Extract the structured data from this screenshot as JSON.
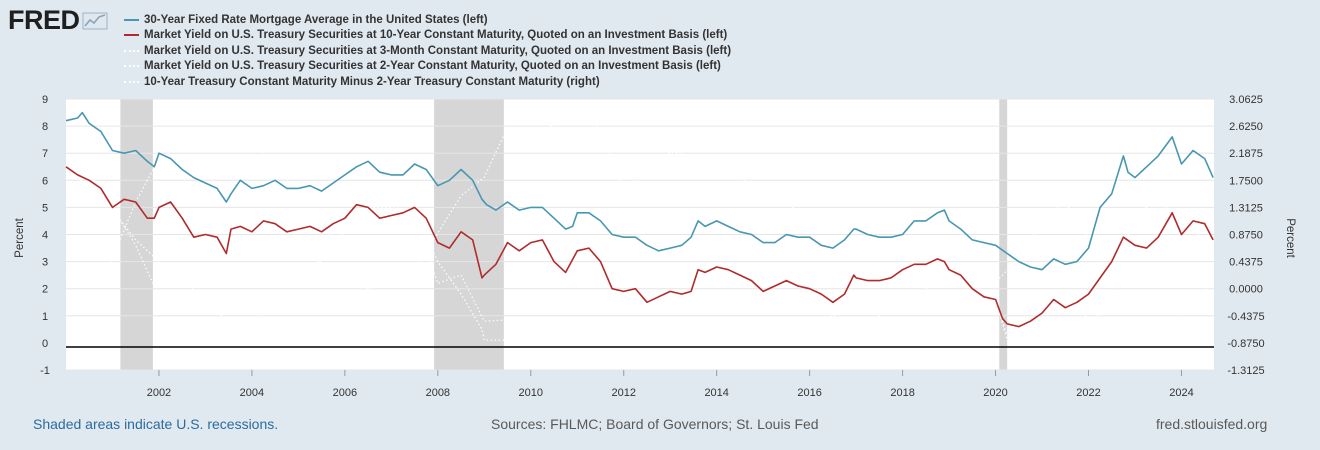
{
  "logo": {
    "text": "FRED"
  },
  "colors": {
    "mortgage": "#4797b1",
    "ten_year": "#b02b2c",
    "three_month": "#ffffff",
    "two_year": "#ffffff",
    "spread": "#ffffff",
    "recession": "#d6d6d6",
    "plot_bg": "#ffffff",
    "page_bg": "#e1e9f0"
  },
  "legend": [
    {
      "label": "30-Year Fixed Rate Mortgage Average in the United States (left)",
      "color": "#4797b1",
      "style": "solid"
    },
    {
      "label": "Market Yield on U.S. Treasury Securities at 10-Year Constant Maturity, Quoted on an Investment Basis (left)",
      "color": "#b02b2c",
      "style": "solid"
    },
    {
      "label": "Market Yield on U.S. Treasury Securities at 3-Month Constant Maturity, Quoted on an Investment Basis (left)",
      "color": "#ffffff",
      "style": "dotted"
    },
    {
      "label": "Market Yield on U.S. Treasury Securities at 2-Year Constant Maturity, Quoted on an Investment Basis (left)",
      "color": "#ffffff",
      "style": "dotted"
    },
    {
      "label": "10-Year Treasury Constant Maturity Minus 2-Year Treasury Constant Maturity (right)",
      "color": "#ffffff",
      "style": "dotted"
    }
  ],
  "footer": {
    "left": "Shaded areas indicate U.S. recessions.",
    "middle": "Sources: FHLMC; Board of Governors; St. Louis Fed",
    "right": "fred.stlouisfed.org"
  },
  "chart_data": {
    "type": "line",
    "title": "",
    "xlabel": "",
    "ylabel_left": "Percent",
    "ylabel_right": "Percent",
    "xlim": [
      2000.0,
      2024.7
    ],
    "ylim_left": [
      -1,
      9
    ],
    "ylim_right": [
      -1.3125,
      3.0625
    ],
    "x_ticks": [
      2002,
      2004,
      2006,
      2008,
      2010,
      2012,
      2014,
      2016,
      2018,
      2020,
      2022,
      2024
    ],
    "x_tick_labels": [
      "2002",
      "2004",
      "2006",
      "2008",
      "2010",
      "2012",
      "2014",
      "2016",
      "2018",
      "2020",
      "2022",
      "2024"
    ],
    "y_left_ticks": [
      -1,
      0,
      1,
      2,
      3,
      4,
      5,
      6,
      7,
      8,
      9
    ],
    "y_left_tick_labels": [
      "-1",
      "0",
      "1",
      "2",
      "3",
      "4",
      "5",
      "6",
      "7",
      "8",
      "9"
    ],
    "y_right_ticks": [
      -1.3125,
      -0.875,
      -0.4375,
      0,
      0.4375,
      0.875,
      1.3125,
      1.75,
      2.1875,
      2.625,
      3.0625
    ],
    "y_right_tick_labels": [
      "-1.3125",
      "-0.8750",
      "-0.4375",
      "0.0000",
      "0.4375",
      "0.8750",
      "1.3125",
      "1.7500",
      "2.1875",
      "2.6250",
      "3.0625"
    ],
    "zero_line": 0,
    "recessions": [
      [
        2001.17,
        2001.87
      ],
      [
        2007.92,
        2009.42
      ],
      [
        2020.08,
        2020.25
      ]
    ],
    "series": [
      {
        "name": "30-Year Fixed Rate Mortgage Average in the United States",
        "axis": "left",
        "x": [
          2000.0,
          2000.25,
          2000.35,
          2000.5,
          2000.75,
          2001.0,
          2001.25,
          2001.5,
          2001.75,
          2001.9,
          2002.0,
          2002.25,
          2002.5,
          2002.75,
          2003.0,
          2003.25,
          2003.45,
          2003.55,
          2003.75,
          2004.0,
          2004.25,
          2004.5,
          2004.75,
          2005.0,
          2005.25,
          2005.5,
          2005.75,
          2006.0,
          2006.25,
          2006.5,
          2006.75,
          2007.0,
          2007.25,
          2007.5,
          2007.75,
          2008.0,
          2008.25,
          2008.5,
          2008.75,
          2008.95,
          2009.05,
          2009.25,
          2009.5,
          2009.75,
          2010.0,
          2010.25,
          2010.5,
          2010.75,
          2010.9,
          2011.0,
          2011.25,
          2011.5,
          2011.75,
          2012.0,
          2012.25,
          2012.5,
          2012.75,
          2013.0,
          2013.25,
          2013.45,
          2013.6,
          2013.75,
          2014.0,
          2014.25,
          2014.5,
          2014.75,
          2015.0,
          2015.25,
          2015.5,
          2015.75,
          2016.0,
          2016.25,
          2016.5,
          2016.75,
          2016.95,
          2017.0,
          2017.25,
          2017.5,
          2017.75,
          2018.0,
          2018.25,
          2018.5,
          2018.75,
          2018.9,
          2019.0,
          2019.25,
          2019.5,
          2019.75,
          2020.0,
          2020.25,
          2020.5,
          2020.75,
          2021.0,
          2021.25,
          2021.5,
          2021.75,
          2022.0,
          2022.25,
          2022.5,
          2022.75,
          2022.85,
          2023.0,
          2023.25,
          2023.5,
          2023.8,
          2024.0,
          2024.25,
          2024.5,
          2024.68
        ],
        "values": [
          8.2,
          8.3,
          8.5,
          8.1,
          7.8,
          7.1,
          7.0,
          7.1,
          6.7,
          6.5,
          7.0,
          6.8,
          6.4,
          6.1,
          5.9,
          5.7,
          5.2,
          5.5,
          6.0,
          5.7,
          5.8,
          6.0,
          5.7,
          5.7,
          5.8,
          5.6,
          5.9,
          6.2,
          6.5,
          6.7,
          6.3,
          6.2,
          6.2,
          6.6,
          6.4,
          5.8,
          6.0,
          6.4,
          6.0,
          5.3,
          5.1,
          4.9,
          5.2,
          4.9,
          5.0,
          5.0,
          4.6,
          4.2,
          4.3,
          4.8,
          4.8,
          4.5,
          4.0,
          3.9,
          3.9,
          3.6,
          3.4,
          3.5,
          3.6,
          3.9,
          4.5,
          4.3,
          4.5,
          4.3,
          4.1,
          4.0,
          3.7,
          3.7,
          4.0,
          3.9,
          3.9,
          3.6,
          3.5,
          3.8,
          4.2,
          4.2,
          4.0,
          3.9,
          3.9,
          4.0,
          4.5,
          4.5,
          4.8,
          4.9,
          4.5,
          4.2,
          3.8,
          3.7,
          3.6,
          3.3,
          3.0,
          2.8,
          2.7,
          3.1,
          2.9,
          3.0,
          3.5,
          5.0,
          5.5,
          6.9,
          6.3,
          6.1,
          6.5,
          6.9,
          7.6,
          6.6,
          7.1,
          6.8,
          6.1
        ]
      },
      {
        "name": "Market Yield on U.S. Treasury Securities at 10-Year Constant Maturity",
        "axis": "left",
        "x": [
          2000.0,
          2000.25,
          2000.5,
          2000.75,
          2001.0,
          2001.25,
          2001.5,
          2001.75,
          2001.9,
          2002.0,
          2002.25,
          2002.5,
          2002.75,
          2003.0,
          2003.25,
          2003.45,
          2003.55,
          2003.75,
          2004.0,
          2004.25,
          2004.5,
          2004.75,
          2005.0,
          2005.25,
          2005.5,
          2005.75,
          2006.0,
          2006.25,
          2006.5,
          2006.75,
          2007.0,
          2007.25,
          2007.5,
          2007.75,
          2008.0,
          2008.25,
          2008.5,
          2008.75,
          2008.95,
          2009.0,
          2009.25,
          2009.5,
          2009.75,
          2010.0,
          2010.25,
          2010.5,
          2010.75,
          2011.0,
          2011.25,
          2011.5,
          2011.75,
          2012.0,
          2012.25,
          2012.5,
          2012.75,
          2013.0,
          2013.25,
          2013.45,
          2013.6,
          2013.75,
          2014.0,
          2014.25,
          2014.5,
          2014.75,
          2015.0,
          2015.25,
          2015.5,
          2015.75,
          2016.0,
          2016.25,
          2016.5,
          2016.75,
          2016.95,
          2017.0,
          2017.25,
          2017.5,
          2017.75,
          2018.0,
          2018.25,
          2018.5,
          2018.75,
          2018.9,
          2019.0,
          2019.25,
          2019.5,
          2019.75,
          2020.0,
          2020.15,
          2020.25,
          2020.5,
          2020.75,
          2021.0,
          2021.25,
          2021.5,
          2021.75,
          2022.0,
          2022.25,
          2022.5,
          2022.75,
          2023.0,
          2023.25,
          2023.5,
          2023.8,
          2024.0,
          2024.25,
          2024.5,
          2024.68
        ],
        "values": [
          6.5,
          6.2,
          6.0,
          5.7,
          5.0,
          5.3,
          5.2,
          4.6,
          4.6,
          5.0,
          5.2,
          4.6,
          3.9,
          4.0,
          3.9,
          3.3,
          4.2,
          4.3,
          4.1,
          4.5,
          4.4,
          4.1,
          4.2,
          4.3,
          4.1,
          4.4,
          4.6,
          5.1,
          5.0,
          4.6,
          4.7,
          4.8,
          5.0,
          4.6,
          3.7,
          3.5,
          4.1,
          3.8,
          2.4,
          2.5,
          2.9,
          3.7,
          3.4,
          3.7,
          3.8,
          3.0,
          2.6,
          3.4,
          3.5,
          3.0,
          2.0,
          1.9,
          2.0,
          1.5,
          1.7,
          1.9,
          1.8,
          1.9,
          2.7,
          2.6,
          2.8,
          2.7,
          2.5,
          2.3,
          1.9,
          2.1,
          2.3,
          2.1,
          2.0,
          1.8,
          1.5,
          1.8,
          2.5,
          2.4,
          2.3,
          2.3,
          2.4,
          2.7,
          2.9,
          2.9,
          3.1,
          3.0,
          2.7,
          2.5,
          2.0,
          1.7,
          1.6,
          0.9,
          0.7,
          0.6,
          0.8,
          1.1,
          1.6,
          1.3,
          1.5,
          1.8,
          2.4,
          3.0,
          3.9,
          3.6,
          3.5,
          3.9,
          4.8,
          4.0,
          4.5,
          4.4,
          3.8
        ]
      },
      {
        "name": "Market Yield on U.S. Treasury Securities at 3-Month Constant Maturity",
        "axis": "left",
        "x": [
          2000.0,
          2000.5,
          2001.0,
          2001.5,
          2002.0,
          2003.0,
          2003.5,
          2004.0,
          2004.5,
          2005.0,
          2005.5,
          2006.0,
          2006.5,
          2007.0,
          2007.5,
          2008.0,
          2008.5,
          2008.95,
          2009.0,
          2010.0,
          2012.0,
          2014.0,
          2015.9,
          2016.5,
          2017.0,
          2017.5,
          2018.0,
          2018.5,
          2019.0,
          2019.5,
          2020.0,
          2020.25,
          2021.0,
          2022.0,
          2022.5,
          2023.0,
          2023.5,
          2024.0,
          2024.68
        ],
        "values": [
          5.7,
          6.2,
          5.0,
          3.6,
          1.7,
          1.2,
          0.9,
          0.9,
          1.3,
          2.3,
          3.1,
          4.1,
          5.0,
          5.0,
          4.9,
          3.0,
          1.8,
          0.5,
          0.1,
          0.1,
          0.1,
          0.05,
          0.2,
          0.3,
          0.5,
          1.0,
          1.4,
          2.0,
          2.4,
          2.2,
          1.6,
          0.1,
          0.05,
          0.2,
          2.2,
          4.6,
          5.4,
          5.4,
          5.1
        ]
      },
      {
        "name": "Market Yield on U.S. Treasury Securities at 2-Year Constant Maturity",
        "axis": "left",
        "x": [
          2000.0,
          2000.5,
          2001.0,
          2001.5,
          2002.0,
          2002.5,
          2003.0,
          2003.5,
          2004.0,
          2004.5,
          2005.0,
          2005.5,
          2006.0,
          2006.5,
          2007.0,
          2007.5,
          2008.0,
          2008.5,
          2009.0,
          2010.0,
          2011.0,
          2012.0,
          2013.0,
          2014.0,
          2015.0,
          2016.0,
          2017.0,
          2017.5,
          2018.0,
          2018.75,
          2019.0,
          2019.5,
          2020.0,
          2020.25,
          2021.0,
          2021.75,
          2022.0,
          2022.5,
          2023.0,
          2023.5,
          2023.8,
          2024.0,
          2024.68
        ],
        "values": [
          6.4,
          6.3,
          4.9,
          3.8,
          3.0,
          2.3,
          1.6,
          1.3,
          1.7,
          2.6,
          3.3,
          3.7,
          4.6,
          5.0,
          4.8,
          4.7,
          2.2,
          2.5,
          0.8,
          0.9,
          0.6,
          0.3,
          0.3,
          0.5,
          0.7,
          0.8,
          1.2,
          1.4,
          2.2,
          2.9,
          2.5,
          1.8,
          1.5,
          0.3,
          0.1,
          0.4,
          1.2,
          3.0,
          4.4,
          4.9,
          5.1,
          4.4,
          3.7
        ]
      },
      {
        "name": "10-Year Treasury Constant Maturity Minus 2-Year Treasury Constant Maturity",
        "axis": "right",
        "x": [
          2000.0,
          2000.5,
          2001.0,
          2001.5,
          2002.0,
          2002.5,
          2003.0,
          2003.5,
          2004.0,
          2004.5,
          2005.0,
          2005.5,
          2006.0,
          2006.5,
          2007.0,
          2007.5,
          2008.0,
          2008.5,
          2009.0,
          2009.5,
          2010.0,
          2010.5,
          2011.0,
          2011.5,
          2012.0,
          2013.0,
          2014.0,
          2015.0,
          2016.0,
          2017.0,
          2018.0,
          2019.0,
          2019.5,
          2020.0,
          2020.5,
          2021.0,
          2021.5,
          2022.0,
          2022.5,
          2023.0,
          2023.5,
          2024.0,
          2024.68
        ],
        "values": [
          0.2,
          -0.4,
          0.5,
          1.4,
          2.1,
          2.3,
          2.4,
          2.4,
          2.5,
          1.8,
          1.1,
          0.4,
          0.1,
          0.0,
          0.1,
          0.3,
          0.9,
          1.5,
          1.8,
          2.6,
          2.8,
          2.6,
          2.8,
          2.6,
          1.6,
          2.2,
          2.1,
          1.5,
          1.2,
          1.1,
          0.5,
          0.2,
          0.1,
          0.1,
          0.5,
          1.1,
          1.4,
          0.8,
          0.1,
          -0.8,
          -0.9,
          -0.4,
          0.1
        ]
      }
    ]
  }
}
